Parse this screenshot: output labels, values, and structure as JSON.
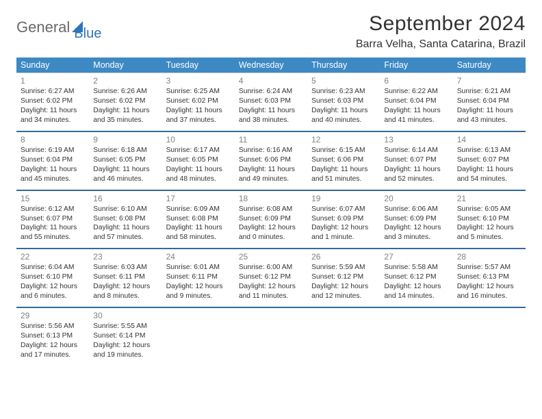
{
  "brand": {
    "part1": "General",
    "part2": "Blue",
    "logo_fill": "#2d74b8"
  },
  "title": "September 2024",
  "subtitle": "Barra Velha, Santa Catarina, Brazil",
  "colors": {
    "header_bg": "#3d89c4",
    "header_text": "#ffffff",
    "row_divider": "#356a9a",
    "daynum": "#808080",
    "text": "#333333",
    "bg": "#ffffff"
  },
  "weekdays": [
    "Sunday",
    "Monday",
    "Tuesday",
    "Wednesday",
    "Thursday",
    "Friday",
    "Saturday"
  ],
  "font": {
    "cell_size_pt": 10.3,
    "daynum_size_pt": 12,
    "header_size_pt": 12.5,
    "title_size_pt": 30,
    "subtitle_size_pt": 16
  },
  "weeks": [
    [
      {
        "n": "1",
        "sr": "Sunrise: 6:27 AM",
        "ss": "Sunset: 6:02 PM",
        "dl1": "Daylight: 11 hours",
        "dl2": "and 34 minutes."
      },
      {
        "n": "2",
        "sr": "Sunrise: 6:26 AM",
        "ss": "Sunset: 6:02 PM",
        "dl1": "Daylight: 11 hours",
        "dl2": "and 35 minutes."
      },
      {
        "n": "3",
        "sr": "Sunrise: 6:25 AM",
        "ss": "Sunset: 6:02 PM",
        "dl1": "Daylight: 11 hours",
        "dl2": "and 37 minutes."
      },
      {
        "n": "4",
        "sr": "Sunrise: 6:24 AM",
        "ss": "Sunset: 6:03 PM",
        "dl1": "Daylight: 11 hours",
        "dl2": "and 38 minutes."
      },
      {
        "n": "5",
        "sr": "Sunrise: 6:23 AM",
        "ss": "Sunset: 6:03 PM",
        "dl1": "Daylight: 11 hours",
        "dl2": "and 40 minutes."
      },
      {
        "n": "6",
        "sr": "Sunrise: 6:22 AM",
        "ss": "Sunset: 6:04 PM",
        "dl1": "Daylight: 11 hours",
        "dl2": "and 41 minutes."
      },
      {
        "n": "7",
        "sr": "Sunrise: 6:21 AM",
        "ss": "Sunset: 6:04 PM",
        "dl1": "Daylight: 11 hours",
        "dl2": "and 43 minutes."
      }
    ],
    [
      {
        "n": "8",
        "sr": "Sunrise: 6:19 AM",
        "ss": "Sunset: 6:04 PM",
        "dl1": "Daylight: 11 hours",
        "dl2": "and 45 minutes."
      },
      {
        "n": "9",
        "sr": "Sunrise: 6:18 AM",
        "ss": "Sunset: 6:05 PM",
        "dl1": "Daylight: 11 hours",
        "dl2": "and 46 minutes."
      },
      {
        "n": "10",
        "sr": "Sunrise: 6:17 AM",
        "ss": "Sunset: 6:05 PM",
        "dl1": "Daylight: 11 hours",
        "dl2": "and 48 minutes."
      },
      {
        "n": "11",
        "sr": "Sunrise: 6:16 AM",
        "ss": "Sunset: 6:06 PM",
        "dl1": "Daylight: 11 hours",
        "dl2": "and 49 minutes."
      },
      {
        "n": "12",
        "sr": "Sunrise: 6:15 AM",
        "ss": "Sunset: 6:06 PM",
        "dl1": "Daylight: 11 hours",
        "dl2": "and 51 minutes."
      },
      {
        "n": "13",
        "sr": "Sunrise: 6:14 AM",
        "ss": "Sunset: 6:07 PM",
        "dl1": "Daylight: 11 hours",
        "dl2": "and 52 minutes."
      },
      {
        "n": "14",
        "sr": "Sunrise: 6:13 AM",
        "ss": "Sunset: 6:07 PM",
        "dl1": "Daylight: 11 hours",
        "dl2": "and 54 minutes."
      }
    ],
    [
      {
        "n": "15",
        "sr": "Sunrise: 6:12 AM",
        "ss": "Sunset: 6:07 PM",
        "dl1": "Daylight: 11 hours",
        "dl2": "and 55 minutes."
      },
      {
        "n": "16",
        "sr": "Sunrise: 6:10 AM",
        "ss": "Sunset: 6:08 PM",
        "dl1": "Daylight: 11 hours",
        "dl2": "and 57 minutes."
      },
      {
        "n": "17",
        "sr": "Sunrise: 6:09 AM",
        "ss": "Sunset: 6:08 PM",
        "dl1": "Daylight: 11 hours",
        "dl2": "and 58 minutes."
      },
      {
        "n": "18",
        "sr": "Sunrise: 6:08 AM",
        "ss": "Sunset: 6:09 PM",
        "dl1": "Daylight: 12 hours",
        "dl2": "and 0 minutes."
      },
      {
        "n": "19",
        "sr": "Sunrise: 6:07 AM",
        "ss": "Sunset: 6:09 PM",
        "dl1": "Daylight: 12 hours",
        "dl2": "and 1 minute."
      },
      {
        "n": "20",
        "sr": "Sunrise: 6:06 AM",
        "ss": "Sunset: 6:09 PM",
        "dl1": "Daylight: 12 hours",
        "dl2": "and 3 minutes."
      },
      {
        "n": "21",
        "sr": "Sunrise: 6:05 AM",
        "ss": "Sunset: 6:10 PM",
        "dl1": "Daylight: 12 hours",
        "dl2": "and 5 minutes."
      }
    ],
    [
      {
        "n": "22",
        "sr": "Sunrise: 6:04 AM",
        "ss": "Sunset: 6:10 PM",
        "dl1": "Daylight: 12 hours",
        "dl2": "and 6 minutes."
      },
      {
        "n": "23",
        "sr": "Sunrise: 6:03 AM",
        "ss": "Sunset: 6:11 PM",
        "dl1": "Daylight: 12 hours",
        "dl2": "and 8 minutes."
      },
      {
        "n": "24",
        "sr": "Sunrise: 6:01 AM",
        "ss": "Sunset: 6:11 PM",
        "dl1": "Daylight: 12 hours",
        "dl2": "and 9 minutes."
      },
      {
        "n": "25",
        "sr": "Sunrise: 6:00 AM",
        "ss": "Sunset: 6:12 PM",
        "dl1": "Daylight: 12 hours",
        "dl2": "and 11 minutes."
      },
      {
        "n": "26",
        "sr": "Sunrise: 5:59 AM",
        "ss": "Sunset: 6:12 PM",
        "dl1": "Daylight: 12 hours",
        "dl2": "and 12 minutes."
      },
      {
        "n": "27",
        "sr": "Sunrise: 5:58 AM",
        "ss": "Sunset: 6:12 PM",
        "dl1": "Daylight: 12 hours",
        "dl2": "and 14 minutes."
      },
      {
        "n": "28",
        "sr": "Sunrise: 5:57 AM",
        "ss": "Sunset: 6:13 PM",
        "dl1": "Daylight: 12 hours",
        "dl2": "and 16 minutes."
      }
    ],
    [
      {
        "n": "29",
        "sr": "Sunrise: 5:56 AM",
        "ss": "Sunset: 6:13 PM",
        "dl1": "Daylight: 12 hours",
        "dl2": "and 17 minutes."
      },
      {
        "n": "30",
        "sr": "Sunrise: 5:55 AM",
        "ss": "Sunset: 6:14 PM",
        "dl1": "Daylight: 12 hours",
        "dl2": "and 19 minutes."
      },
      null,
      null,
      null,
      null,
      null
    ]
  ]
}
